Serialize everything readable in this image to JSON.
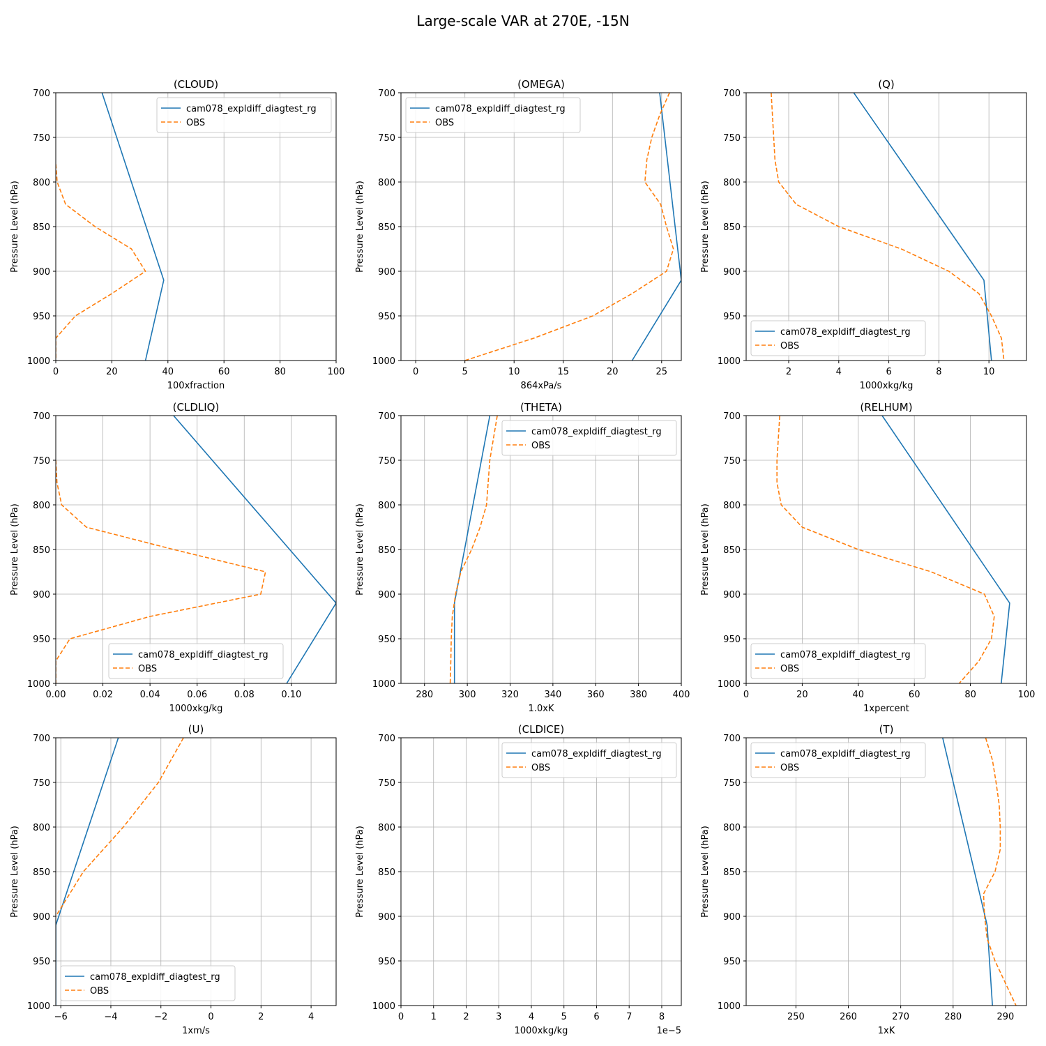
{
  "suptitle": "Large-scale VAR at 270E, -15N",
  "ylabel": "Pressure Level (hPa)",
  "colors": {
    "model": "#1f77b4",
    "obs": "#ff7f0e",
    "grid": "#b0b0b0"
  },
  "chart_data": [
    {
      "type": "line",
      "title": "(CLOUD)",
      "xlabel": "100xfraction",
      "xlim": [
        0,
        100
      ],
      "xticks": [
        0,
        20,
        40,
        60,
        80,
        100
      ],
      "ylim": [
        700,
        1000
      ],
      "yticks": [
        700,
        750,
        800,
        850,
        900,
        950,
        1000
      ],
      "legend": "upper right",
      "series": [
        {
          "name": "cam078_expldiff_diagtest_rg",
          "style": "solid",
          "x": [
            16.5,
            38.5,
            32
          ],
          "y": [
            700,
            910,
            1000
          ]
        },
        {
          "name": "OBS",
          "style": "dashed",
          "x": [
            0,
            0.5,
            3.5,
            14,
            27,
            32,
            20,
            7,
            0,
            0
          ],
          "y": [
            780,
            800,
            825,
            850,
            875,
            900,
            925,
            950,
            975,
            1000
          ]
        }
      ]
    },
    {
      "type": "line",
      "title": "(OMEGA)",
      "xlabel": "864xPa/s",
      "xlim": [
        -1.5,
        27
      ],
      "xticks": [
        0,
        5,
        10,
        15,
        20,
        25
      ],
      "ylim": [
        700,
        1000
      ],
      "yticks": [
        700,
        750,
        800,
        850,
        900,
        950,
        1000
      ],
      "legend": "upper left",
      "series": [
        {
          "name": "cam078_expldiff_diagtest_rg",
          "style": "solid",
          "x": [
            24.8,
            27,
            22
          ],
          "y": [
            700,
            910,
            1000
          ]
        },
        {
          "name": "OBS",
          "style": "dashed",
          "x": [
            25.8,
            24.8,
            24.0,
            23.5,
            23.3,
            24.9,
            25.5,
            26.2,
            25.5,
            22.0,
            18.0,
            12.0,
            5.0
          ],
          "y": [
            700,
            725,
            750,
            775,
            800,
            825,
            850,
            875,
            900,
            925,
            950,
            975,
            1000
          ]
        }
      ]
    },
    {
      "type": "line",
      "title": "(Q)",
      "xlabel": "1000xkg/kg",
      "xlim": [
        0.3,
        11.5
      ],
      "xticks": [
        2,
        4,
        6,
        8,
        10
      ],
      "ylim": [
        700,
        1000
      ],
      "yticks": [
        700,
        750,
        800,
        850,
        900,
        950,
        1000
      ],
      "legend": "lower left",
      "series": [
        {
          "name": "cam078_expldiff_diagtest_rg",
          "style": "solid",
          "x": [
            4.6,
            9.8,
            10.1
          ],
          "y": [
            700,
            910,
            1000
          ]
        },
        {
          "name": "OBS",
          "style": "dashed",
          "x": [
            1.3,
            1.35,
            1.4,
            1.45,
            1.6,
            2.3,
            4.0,
            6.5,
            8.4,
            9.6,
            10.1,
            10.5,
            10.6
          ],
          "y": [
            700,
            725,
            750,
            775,
            800,
            825,
            850,
            875,
            900,
            925,
            950,
            975,
            1000
          ]
        }
      ]
    },
    {
      "type": "line",
      "title": "(CLDLIQ)",
      "xlabel": "1000xkg/kg",
      "xlim": [
        0,
        0.119
      ],
      "xticks": [
        0.0,
        0.02,
        0.04,
        0.06,
        0.08,
        0.1
      ],
      "ylim": [
        700,
        1000
      ],
      "yticks": [
        700,
        750,
        800,
        850,
        900,
        950,
        1000
      ],
      "legend": "lower center",
      "series": [
        {
          "name": "cam078_expldiff_diagtest_rg",
          "style": "solid",
          "x": [
            0.05,
            0.119,
            0.098
          ],
          "y": [
            700,
            910,
            1000
          ]
        },
        {
          "name": "OBS",
          "style": "dashed",
          "x": [
            0,
            0.0005,
            0.0025,
            0.013,
            0.05,
            0.089,
            0.087,
            0.04,
            0.006,
            0,
            0
          ],
          "y": [
            750,
            775,
            800,
            825,
            850,
            875,
            900,
            925,
            950,
            975,
            1000
          ]
        }
      ]
    },
    {
      "type": "line",
      "title": "(THETA)",
      "xlabel": "1.0xK",
      "xlim": [
        269,
        400
      ],
      "xticks": [
        280,
        300,
        320,
        340,
        360,
        380,
        400
      ],
      "ylim": [
        700,
        1000
      ],
      "yticks": [
        700,
        750,
        800,
        850,
        900,
        950,
        1000
      ],
      "legend": "upper right",
      "series": [
        {
          "name": "cam078_expldiff_diagtest_rg",
          "style": "solid",
          "x": [
            310.5,
            294.0,
            294.0
          ],
          "y": [
            700,
            910,
            1000
          ]
        },
        {
          "name": "OBS",
          "style": "dashed",
          "x": [
            314.0,
            310.5,
            309.0,
            306.0,
            302.0,
            297.0,
            294.5,
            293.0,
            292.5,
            292.3,
            292.0
          ],
          "y": [
            700,
            750,
            800,
            825,
            850,
            875,
            900,
            925,
            950,
            975,
            1000
          ]
        }
      ]
    },
    {
      "type": "line",
      "title": "(RELHUM)",
      "xlabel": "1xpercent",
      "xlim": [
        0,
        100
      ],
      "xticks": [
        0,
        20,
        40,
        60,
        80,
        100
      ],
      "ylim": [
        700,
        1000
      ],
      "yticks": [
        700,
        750,
        800,
        850,
        900,
        950,
        1000
      ],
      "legend": "lower left",
      "series": [
        {
          "name": "cam078_expldiff_diagtest_rg",
          "style": "solid",
          "x": [
            48.5,
            94.0,
            91.0
          ],
          "y": [
            700,
            910,
            1000
          ]
        },
        {
          "name": "OBS",
          "style": "dashed",
          "x": [
            12.0,
            11.5,
            11.0,
            11.0,
            12.5,
            20.0,
            40.0,
            66.0,
            85.0,
            88.5,
            87.5,
            83.0,
            76.0
          ],
          "y": [
            700,
            725,
            750,
            775,
            800,
            825,
            850,
            875,
            900,
            925,
            950,
            975,
            1000
          ]
        }
      ]
    },
    {
      "type": "line",
      "title": "(U)",
      "xlabel": "1xm/s",
      "xlim": [
        -6.2,
        5
      ],
      "xticks": [
        -6,
        -4,
        -2,
        0,
        2,
        4
      ],
      "ylim": [
        700,
        1000
      ],
      "yticks": [
        700,
        750,
        800,
        850,
        900,
        950,
        1000
      ],
      "legend": "lower left",
      "series": [
        {
          "name": "cam078_expldiff_diagtest_rg",
          "style": "solid",
          "x": [
            -3.7,
            -6.2,
            -6.2
          ],
          "y": [
            700,
            910,
            1000
          ]
        },
        {
          "name": "OBS",
          "style": "dashed",
          "x": [
            -1.1,
            -2.1,
            -3.5,
            -5.1,
            -6.2
          ],
          "y": [
            700,
            750,
            800,
            850,
            900
          ]
        }
      ]
    },
    {
      "type": "line",
      "title": "(CLDICE)",
      "xlabel": "1000xkg/kg",
      "xscale_label": "1e−5",
      "xlim": [
        0,
        8.6
      ],
      "xticks": [
        0,
        1,
        2,
        3,
        4,
        5,
        6,
        7,
        8
      ],
      "ylim": [
        700,
        1000
      ],
      "yticks": [
        700,
        750,
        800,
        850,
        900,
        950,
        1000
      ],
      "legend": "upper right",
      "series": [
        {
          "name": "cam078_expldiff_diagtest_rg",
          "style": "solid",
          "x": [],
          "y": []
        },
        {
          "name": "OBS",
          "style": "dashed",
          "x": [],
          "y": []
        }
      ]
    },
    {
      "type": "line",
      "title": "(T)",
      "xlabel": "1xK",
      "xlim": [
        240.5,
        294
      ],
      "xticks": [
        250,
        260,
        270,
        280,
        290
      ],
      "ylim": [
        700,
        1000
      ],
      "yticks": [
        700,
        750,
        800,
        850,
        900,
        950,
        1000
      ],
      "legend": "upper left",
      "series": [
        {
          "name": "cam078_expldiff_diagtest_rg",
          "style": "solid",
          "x": [
            278.0,
            286.5,
            287.5
          ],
          "y": [
            700,
            910,
            1000
          ]
        },
        {
          "name": "OBS",
          "style": "dashed",
          "x": [
            286.2,
            287.5,
            288.2,
            288.8,
            289.0,
            289.0,
            288.0,
            285.8,
            286.0,
            286.5,
            288.0,
            290.0,
            292.0
          ],
          "y": [
            700,
            725,
            750,
            775,
            800,
            825,
            850,
            875,
            900,
            925,
            950,
            975,
            1000
          ]
        }
      ]
    }
  ]
}
